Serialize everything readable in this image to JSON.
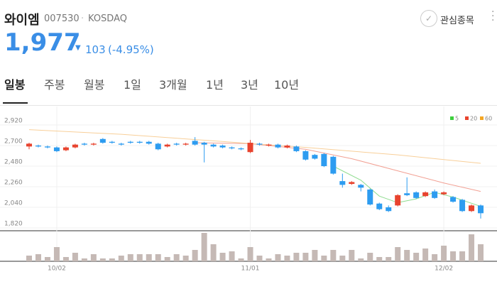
{
  "header": {
    "name": "와이엠",
    "code": "007530",
    "market": "KOSDAQ",
    "price": "1,977",
    "change": "103",
    "change_pct": "(-4.95%)",
    "watch_button": "관심종목"
  },
  "tabs": [
    "일봉",
    "주봉",
    "월봉",
    "1일",
    "3개월",
    "1년",
    "3년",
    "10년"
  ],
  "chart_data": {
    "type": "candlestick",
    "categories": [
      null,
      null,
      null,
      "10/02",
      null,
      null,
      null,
      null,
      null,
      null,
      null,
      null,
      null,
      null,
      null,
      null,
      null,
      null,
      null,
      null,
      null,
      null,
      null,
      null,
      "11/01",
      null,
      null,
      null,
      null,
      null,
      null,
      null,
      null,
      null,
      null,
      null,
      null,
      null,
      null,
      null,
      null,
      null,
      null,
      null,
      null,
      "12/02",
      null,
      null,
      null,
      null
    ],
    "open": [
      2690,
      2700,
      2690,
      2680,
      2650,
      2680,
      2720,
      2710,
      2770,
      2740,
      2720,
      2740,
      2740,
      2740,
      2720,
      2690,
      2720,
      2710,
      2750,
      2730,
      2710,
      2700,
      2680,
      2670,
      2630,
      2720,
      2700,
      2710,
      2680,
      2690,
      2640,
      2600,
      2610,
      2580,
      2320,
      2290,
      2280,
      2230,
      2080,
      2040,
      2060,
      2190,
      2200,
      2160,
      2210,
      2180,
      2150,
      2120,
      2000,
      2060
    ],
    "high": [
      2730,
      2710,
      2700,
      2690,
      2690,
      2720,
      2730,
      2730,
      2780,
      2750,
      2730,
      2750,
      2750,
      2750,
      2730,
      2720,
      2730,
      2730,
      2790,
      2740,
      2720,
      2710,
      2690,
      2680,
      2760,
      2730,
      2720,
      2720,
      2710,
      2700,
      2650,
      2610,
      2620,
      2590,
      2400,
      2320,
      2290,
      2240,
      2090,
      2060,
      2180,
      2360,
      2210,
      2210,
      2230,
      2210,
      2160,
      2130,
      2070,
      2070
    ],
    "low": [
      2660,
      2680,
      2670,
      2630,
      2640,
      2670,
      2700,
      2700,
      2720,
      2720,
      2700,
      2720,
      2720,
      2710,
      2650,
      2680,
      2700,
      2700,
      2700,
      2520,
      2680,
      2670,
      2660,
      2650,
      2620,
      2700,
      2690,
      2670,
      2670,
      2630,
      2540,
      2550,
      2470,
      2390,
      2250,
      2280,
      2210,
      2060,
      2010,
      1990,
      2050,
      2160,
      2130,
      2150,
      2130,
      2170,
      2090,
      1990,
      1990,
      1920
    ],
    "close": [
      2720,
      2690,
      2680,
      2640,
      2680,
      2710,
      2710,
      2720,
      2730,
      2730,
      2710,
      2730,
      2730,
      2720,
      2660,
      2710,
      2710,
      2720,
      2710,
      2710,
      2690,
      2680,
      2670,
      2660,
      2730,
      2710,
      2710,
      2680,
      2700,
      2640,
      2550,
      2560,
      2480,
      2400,
      2280,
      2310,
      2250,
      2070,
      2020,
      2000,
      2170,
      2170,
      2140,
      2200,
      2140,
      2200,
      2100,
      2000,
      2060,
      1977
    ],
    "volume": [
      20,
      25,
      15,
      50,
      15,
      30,
      10,
      25,
      10,
      10,
      20,
      25,
      25,
      25,
      25,
      15,
      25,
      20,
      40,
      100,
      60,
      30,
      35,
      10,
      50,
      20,
      10,
      25,
      20,
      30,
      30,
      40,
      20,
      40,
      20,
      40,
      10,
      30,
      15,
      15,
      50,
      40,
      30,
      45,
      25,
      55,
      35,
      35,
      95,
      60
    ],
    "volume_lim": [
      0,
      100
    ],
    "up_color": "#e8432e",
    "down_color": "#2d9cf0",
    "volume_color": "#c5b9b5",
    "ylim": [
      1820,
      2920
    ],
    "yticks": [
      {
        "value": 1820,
        "label": "1,820"
      },
      {
        "value": 2040,
        "label": "2,040"
      },
      {
        "value": 2260,
        "label": "2,260"
      },
      {
        "value": 2480,
        "label": "2,480"
      },
      {
        "value": 2700,
        "label": "2,700"
      },
      {
        "value": 2920,
        "label": "2,920"
      }
    ],
    "grid": true,
    "series": [
      {
        "name": "5",
        "color": "#3dcf3d",
        "line_color": "#8fdc8f",
        "x": [
          33,
          36,
          38,
          40,
          42,
          44,
          46,
          49
        ],
        "values": [
          2480,
          2330,
          2160,
          2090,
          2130,
          2200,
          2150,
          2050
        ]
      },
      {
        "name": "20",
        "color": "#e8432e",
        "line_color": "#f2a093",
        "x": [
          18,
          24,
          30,
          35,
          40,
          45,
          49
        ],
        "values": [
          2730,
          2720,
          2660,
          2560,
          2430,
          2300,
          2210
        ]
      },
      {
        "name": "60",
        "color": "#f5a623",
        "line_color": "#f8cf99",
        "x": [
          0,
          10,
          20,
          30,
          40,
          49
        ],
        "values": [
          2870,
          2820,
          2750,
          2680,
          2600,
          2510
        ]
      }
    ],
    "legend": "top-right"
  }
}
